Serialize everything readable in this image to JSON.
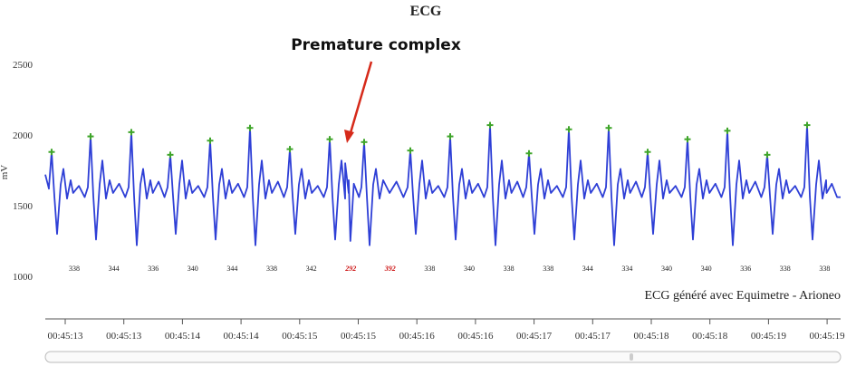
{
  "chart_data": {
    "type": "line",
    "title": "ECG",
    "ylabel": "mV",
    "ylim": [
      1000,
      2500
    ],
    "yticks": [
      1000,
      1500,
      2000,
      2500
    ],
    "annotation": "Premature complex",
    "credit": "ECG généré avec Equimetre - Arioneo",
    "rr_intervals": [
      {
        "value": "338",
        "premature": false
      },
      {
        "value": "344",
        "premature": false
      },
      {
        "value": "336",
        "premature": false
      },
      {
        "value": "340",
        "premature": false
      },
      {
        "value": "344",
        "premature": false
      },
      {
        "value": "338",
        "premature": false
      },
      {
        "value": "342",
        "premature": false
      },
      {
        "value": "292",
        "premature": true
      },
      {
        "value": "392",
        "premature": true
      },
      {
        "value": "338",
        "premature": false
      },
      {
        "value": "340",
        "premature": false
      },
      {
        "value": "338",
        "premature": false
      },
      {
        "value": "338",
        "premature": false
      },
      {
        "value": "344",
        "premature": false
      },
      {
        "value": "334",
        "premature": false
      },
      {
        "value": "340",
        "premature": false
      },
      {
        "value": "340",
        "premature": false
      },
      {
        "value": "336",
        "premature": false
      },
      {
        "value": "338",
        "premature": false
      },
      {
        "value": "338",
        "premature": false
      }
    ],
    "r_peaks_mv": [
      1880,
      1990,
      2020,
      1860,
      1960,
      2050,
      1900,
      1970,
      1950,
      1890,
      1990,
      2070,
      1870,
      2040,
      2050,
      1880,
      1970,
      2030,
      1860,
      2070
    ],
    "x_tick_labels": [
      "00:45:13",
      "00:45:13",
      "00:45:14",
      "00:45:14",
      "00:45:15",
      "00:45:15",
      "00:45:16",
      "00:45:16",
      "00:45:17",
      "00:45:17",
      "00:45:18",
      "00:45:18",
      "00:45:19",
      "00:45:19"
    ],
    "colors": {
      "trace": "#2e3fd6",
      "peak_marker": "#3fa52a",
      "arrow": "#d62a1a",
      "premature_label": "#cc1111"
    }
  }
}
